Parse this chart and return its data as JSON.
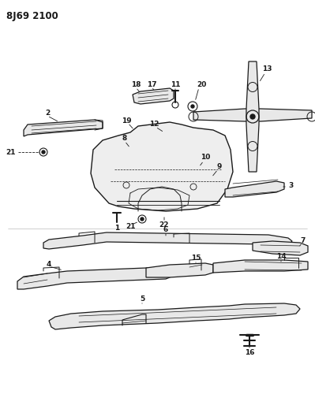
{
  "title": "8J69 2100",
  "bg_color": "#ffffff",
  "line_color": "#1a1a1a",
  "fill_color": "#e8e8e8",
  "fig_width": 3.99,
  "fig_height": 5.33,
  "dpi": 100
}
